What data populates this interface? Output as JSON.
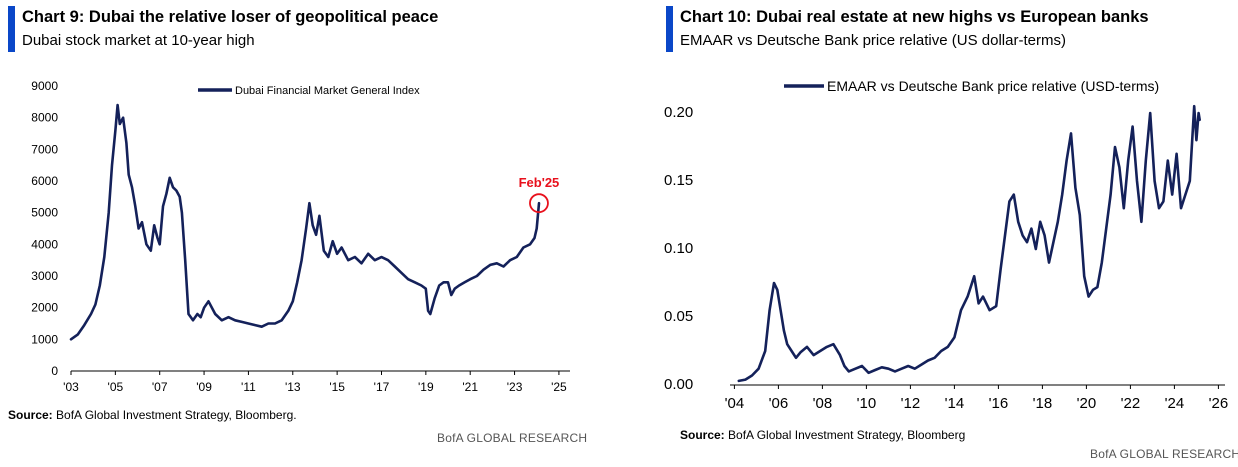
{
  "panels": [
    {
      "title": "Chart 9: Dubai the relative loser of geopolitical peace",
      "subtitle": "Dubai stock market at 10-year high",
      "source_label": "Source:",
      "source_text": " BofA Global Investment Strategy, Bloomberg.",
      "brand": "BofA GLOBAL RESEARCH"
    },
    {
      "title": "Chart 10: Dubai real estate at new highs vs European banks",
      "subtitle": "EMAAR vs Deutsche Bank price relative (US dollar-terms)",
      "source_label": "Source:",
      "source_text": " BofA Global Investment Strategy, Bloomberg",
      "brand": "BofA GLOBAL RESEARCH"
    }
  ],
  "chart_data": [
    {
      "type": "line",
      "title": "Chart 9: Dubai the relative loser of geopolitical peace",
      "subtitle": "Dubai stock market at 10-year high",
      "xlabel": "",
      "ylabel": "",
      "ylim": [
        0,
        9000
      ],
      "xlim": [
        2003,
        2025.5
      ],
      "yticks": [
        0,
        1000,
        2000,
        3000,
        4000,
        5000,
        6000,
        7000,
        8000,
        9000
      ],
      "xticks": [
        2003,
        2005,
        2007,
        2009,
        2011,
        2013,
        2015,
        2017,
        2019,
        2021,
        2023,
        2025
      ],
      "xtick_labels": [
        "'03",
        "'05",
        "'07",
        "'09",
        "'11",
        "'13",
        "'15",
        "'17",
        "'19",
        "'21",
        "'23",
        "'25"
      ],
      "legend": "top-center",
      "grid": false,
      "color": "#14215a",
      "annotation": {
        "text": "Feb'25",
        "x": 2024.1,
        "y": 5300,
        "color": "#e8101c"
      },
      "series": [
        {
          "name": "Dubai Financial Market General Index",
          "x": [
            2003.0,
            2003.3,
            2003.6,
            2003.9,
            2004.1,
            2004.3,
            2004.5,
            2004.7,
            2004.85,
            2005.0,
            2005.1,
            2005.2,
            2005.35,
            2005.5,
            2005.6,
            2005.75,
            2005.9,
            2006.05,
            2006.2,
            2006.4,
            2006.6,
            2006.75,
            2006.9,
            2007.0,
            2007.15,
            2007.3,
            2007.45,
            2007.6,
            2007.75,
            2007.9,
            2008.0,
            2008.15,
            2008.3,
            2008.5,
            2008.7,
            2008.85,
            2009.0,
            2009.2,
            2009.5,
            2009.8,
            2010.1,
            2010.4,
            2010.7,
            2011.0,
            2011.3,
            2011.6,
            2011.9,
            2012.2,
            2012.5,
            2012.8,
            2013.0,
            2013.2,
            2013.4,
            2013.6,
            2013.75,
            2013.9,
            2014.05,
            2014.2,
            2014.4,
            2014.6,
            2014.8,
            2015.0,
            2015.2,
            2015.5,
            2015.8,
            2016.1,
            2016.4,
            2016.7,
            2017.0,
            2017.3,
            2017.6,
            2017.9,
            2018.2,
            2018.5,
            2018.8,
            2019.0,
            2019.1,
            2019.2,
            2019.4,
            2019.6,
            2019.8,
            2020.0,
            2020.15,
            2020.3,
            2020.5,
            2020.75,
            2021.0,
            2021.3,
            2021.6,
            2021.9,
            2022.2,
            2022.5,
            2022.8,
            2023.1,
            2023.4,
            2023.7,
            2023.9,
            2024.0,
            2024.1
          ],
          "values": [
            1000,
            1150,
            1450,
            1800,
            2100,
            2700,
            3600,
            5000,
            6500,
            7600,
            8400,
            7800,
            8000,
            7200,
            6200,
            5800,
            5200,
            4500,
            4700,
            4000,
            3800,
            4600,
            4200,
            4000,
            5200,
            5600,
            6100,
            5800,
            5700,
            5500,
            5000,
            3500,
            1800,
            1600,
            1800,
            1700,
            2000,
            2200,
            1800,
            1600,
            1700,
            1600,
            1550,
            1500,
            1450,
            1400,
            1500,
            1500,
            1600,
            1900,
            2200,
            2800,
            3500,
            4500,
            5300,
            4600,
            4300,
            4900,
            3800,
            3600,
            4100,
            3700,
            3900,
            3500,
            3600,
            3400,
            3700,
            3500,
            3600,
            3500,
            3300,
            3100,
            2900,
            2800,
            2700,
            2600,
            1900,
            1800,
            2300,
            2700,
            2800,
            2800,
            2400,
            2600,
            2700,
            2800,
            2900,
            3000,
            3200,
            3350,
            3400,
            3300,
            3500,
            3600,
            3900,
            4000,
            4200,
            4500,
            5300
          ]
        }
      ]
    },
    {
      "type": "line",
      "title": "Chart 10: Dubai real estate at new highs vs European banks",
      "subtitle": "EMAAR vs Deutsche Bank price relative (US dollar-terms)",
      "xlabel": "",
      "ylabel": "",
      "ylim": [
        0,
        0.2
      ],
      "xlim": [
        2003.8,
        2026.3
      ],
      "yticks": [
        0.0,
        0.05,
        0.1,
        0.15,
        0.2
      ],
      "ytick_labels": [
        "0.00",
        "0.05",
        "0.10",
        "0.15",
        "0.20"
      ],
      "xticks": [
        2004,
        2006,
        2008,
        2010,
        2012,
        2014,
        2016,
        2018,
        2020,
        2022,
        2024,
        2026
      ],
      "xtick_labels": [
        "'04",
        "'06",
        "'08",
        "'10",
        "'12",
        "'14",
        "'16",
        "'18",
        "'20",
        "'22",
        "'24",
        "'26"
      ],
      "legend": "top-center",
      "grid": false,
      "color": "#14215a",
      "series": [
        {
          "name": "EMAAR vs Deutsche Bank price relative (USD-terms)",
          "x": [
            2004.2,
            2004.5,
            2004.8,
            2005.1,
            2005.4,
            2005.6,
            2005.8,
            2005.95,
            2006.1,
            2006.25,
            2006.4,
            2006.6,
            2006.8,
            2007.0,
            2007.3,
            2007.6,
            2007.9,
            2008.2,
            2008.5,
            2008.8,
            2009.0,
            2009.2,
            2009.5,
            2009.8,
            2010.1,
            2010.4,
            2010.7,
            2011.0,
            2011.3,
            2011.6,
            2011.9,
            2012.2,
            2012.5,
            2012.8,
            2013.1,
            2013.4,
            2013.7,
            2014.0,
            2014.3,
            2014.6,
            2014.9,
            2015.1,
            2015.3,
            2015.6,
            2015.9,
            2016.1,
            2016.3,
            2016.5,
            2016.7,
            2016.9,
            2017.1,
            2017.3,
            2017.5,
            2017.7,
            2017.9,
            2018.1,
            2018.3,
            2018.5,
            2018.7,
            2018.9,
            2019.1,
            2019.3,
            2019.5,
            2019.7,
            2019.9,
            2020.1,
            2020.3,
            2020.5,
            2020.7,
            2020.9,
            2021.1,
            2021.3,
            2021.5,
            2021.7,
            2021.9,
            2022.1,
            2022.3,
            2022.5,
            2022.7,
            2022.9,
            2023.1,
            2023.3,
            2023.5,
            2023.7,
            2023.9,
            2024.1,
            2024.3,
            2024.5,
            2024.7,
            2024.9,
            2025.0,
            2025.1,
            2025.15
          ],
          "values": [
            0.003,
            0.004,
            0.007,
            0.012,
            0.025,
            0.055,
            0.075,
            0.07,
            0.055,
            0.04,
            0.03,
            0.025,
            0.02,
            0.024,
            0.028,
            0.022,
            0.025,
            0.028,
            0.03,
            0.022,
            0.014,
            0.01,
            0.012,
            0.014,
            0.009,
            0.011,
            0.013,
            0.012,
            0.01,
            0.012,
            0.014,
            0.012,
            0.015,
            0.018,
            0.02,
            0.025,
            0.028,
            0.035,
            0.055,
            0.065,
            0.08,
            0.06,
            0.065,
            0.055,
            0.058,
            0.085,
            0.11,
            0.135,
            0.14,
            0.12,
            0.11,
            0.105,
            0.115,
            0.1,
            0.12,
            0.11,
            0.09,
            0.105,
            0.12,
            0.14,
            0.165,
            0.185,
            0.145,
            0.125,
            0.08,
            0.065,
            0.07,
            0.072,
            0.09,
            0.115,
            0.14,
            0.175,
            0.16,
            0.13,
            0.165,
            0.19,
            0.15,
            0.12,
            0.165,
            0.2,
            0.15,
            0.13,
            0.135,
            0.165,
            0.14,
            0.17,
            0.13,
            0.14,
            0.15,
            0.205,
            0.18,
            0.2,
            0.195
          ]
        }
      ]
    }
  ]
}
